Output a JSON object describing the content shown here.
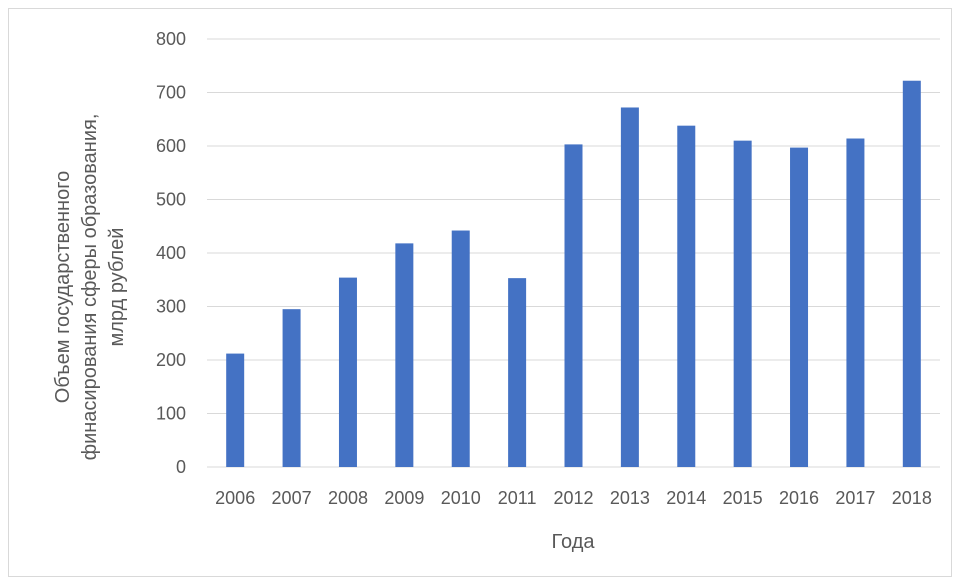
{
  "chart_data": {
    "type": "bar",
    "categories": [
      "2006",
      "2007",
      "2008",
      "2009",
      "2010",
      "2011",
      "2012",
      "2013",
      "2014",
      "2015",
      "2016",
      "2017",
      "2018"
    ],
    "values": [
      212,
      295,
      354,
      418,
      442,
      353,
      603,
      672,
      638,
      610,
      597,
      614,
      722
    ],
    "xlabel": "Года",
    "ylabel_lines": [
      "Объем государственного",
      "финасирования сферы образования,",
      "млрд рублей"
    ],
    "ylim": [
      0,
      800
    ],
    "yticks": [
      0,
      100,
      200,
      300,
      400,
      500,
      600,
      700,
      800
    ],
    "bar_color": "#4472c4",
    "grid_color": "#d9d9d9",
    "grid": true,
    "legend": "none"
  }
}
